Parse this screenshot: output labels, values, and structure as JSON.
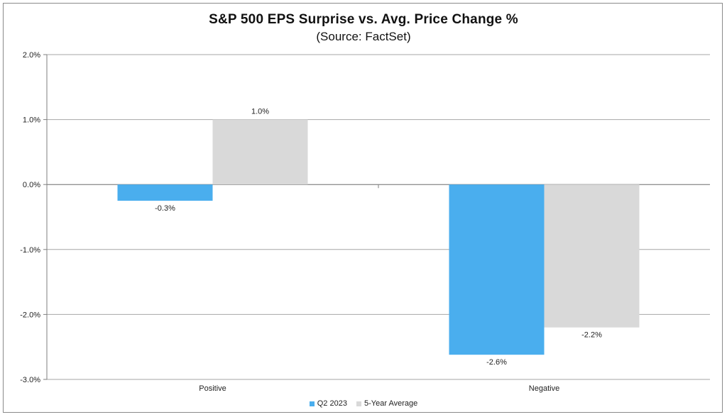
{
  "chart_data": {
    "type": "bar",
    "title": "S&P 500 EPS Surprise vs. Avg. Price Change %",
    "subtitle": "(Source: FactSet)",
    "xlabel": "",
    "ylabel": "",
    "categories": [
      "Positive",
      "Negative"
    ],
    "series": [
      {
        "name": "Q2 2023",
        "values": [
          -0.25,
          -2.62
        ],
        "labels": [
          "-0.3%",
          "-2.6%"
        ],
        "color": "#4aaeee"
      },
      {
        "name": "5-Year Average",
        "values": [
          1.0,
          -2.2
        ],
        "labels": [
          "1.0%",
          "-2.2%"
        ],
        "color": "#d9d9d9"
      }
    ],
    "ylim": [
      -3.0,
      2.0
    ],
    "yticks": [
      2.0,
      1.0,
      0.0,
      -1.0,
      -2.0,
      -3.0
    ],
    "ytick_labels": [
      "2.0%",
      "1.0%",
      "0.0%",
      "-1.0%",
      "-2.0%",
      "-3.0%"
    ],
    "grid": true,
    "legend_position": "bottom"
  }
}
